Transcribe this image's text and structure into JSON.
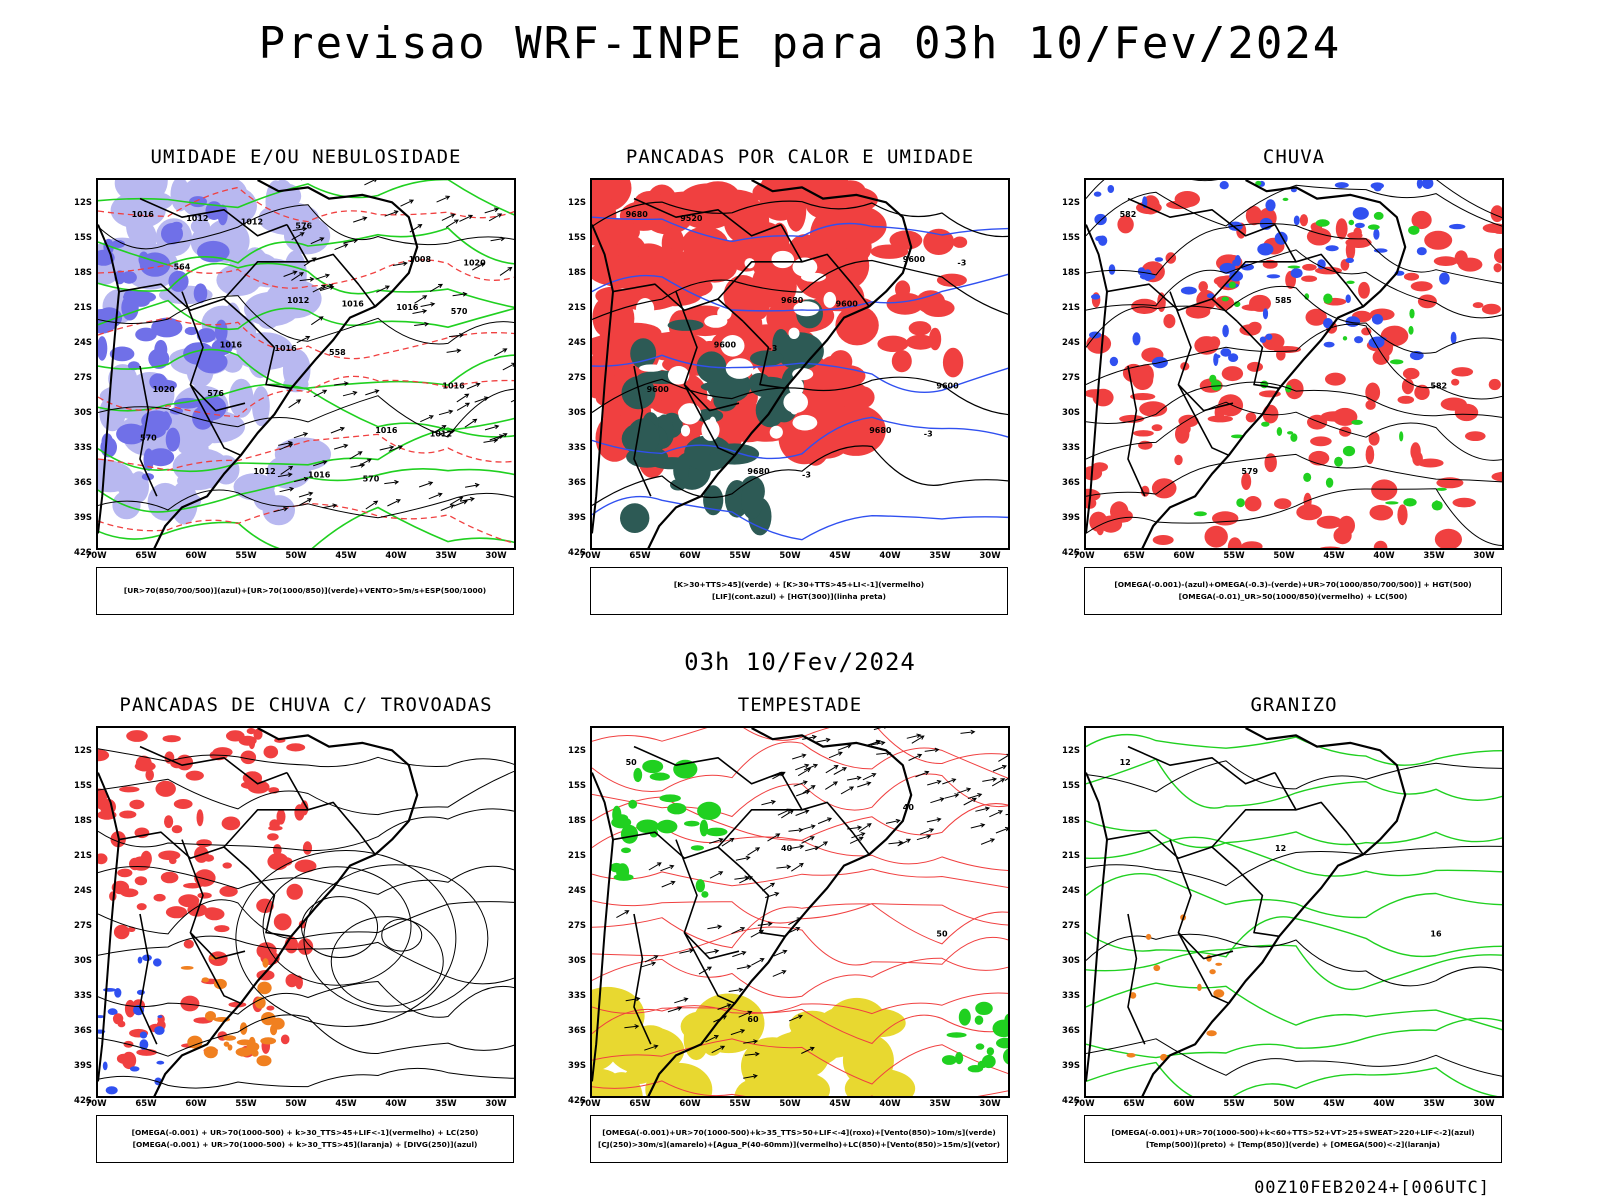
{
  "title": "Previsao WRF-INPE  para 03h 10/Fev/2024",
  "mid_title": "03h 10/Fev/2024",
  "footer": "00Z10FEB2024+[006UTC]",
  "lat_ticks": [
    "12S",
    "15S",
    "18S",
    "21S",
    "24S",
    "27S",
    "30S",
    "33S",
    "36S",
    "39S",
    "42S"
  ],
  "lon_ticks": [
    "70W",
    "65W",
    "60W",
    "55W",
    "50W",
    "45W",
    "40W",
    "35W",
    "30W"
  ],
  "colors": {
    "red": "#f04040",
    "green": "#20d020",
    "blue": "#3050f0",
    "lavender": "#b8b8f0",
    "orange": "#f08020",
    "yellow": "#e8d830",
    "darkteal": "#2d5a55"
  },
  "panels": [
    {
      "id": "umidade",
      "title": "UMIDADE E/OU NEBULOSIDADE",
      "legend": [
        "[UR>70(850/700/500)](azul)+[UR>70(1000/850)](verde)+VENTO>5m/s+ESP(500/1000)"
      ],
      "contour_labels": [
        "1016",
        "1012",
        "1016",
        "1012",
        "1008",
        "1016",
        "1016",
        "1012",
        "1016",
        "1020",
        "1016",
        "1020",
        "1016",
        "1012",
        "1012",
        "1016",
        "576",
        "570",
        "564",
        "558",
        "570",
        "576",
        "570"
      ]
    },
    {
      "id": "pancadas-calor",
      "title": "PANCADAS POR CALOR E UMIDADE",
      "legend": [
        "[K>30+TTS>45](verde) + [K>30+TTS>45+LI<-1](vermelho)",
        "[LIF](cont.azul) + [HGT(300)](linha preta)"
      ],
      "contour_labels": [
        "9680",
        "9680",
        "9600",
        "9680",
        "9600",
        "9600",
        "9680",
        "9520",
        "9600",
        "9600",
        "-3",
        "-3",
        "-3",
        "-3"
      ]
    },
    {
      "id": "chuva",
      "title": "CHUVA",
      "legend": [
        "[OMEGA(-0.001)-(azul)+OMEGA(-0.3)-(verde)+UR>70(1000/850/700/500)] + HGT(500)",
        "[OMEGA(-0.01)_UR>50(1000/850)(vermelho) + LC(500)"
      ],
      "contour_labels": [
        "582",
        "585",
        "582",
        "579"
      ]
    },
    {
      "id": "pancadas-trovoadas",
      "title": "PANCADAS DE CHUVA C/ TROVOADAS",
      "legend": [
        "[OMEGA(-0.001) + UR>70(1000-500) + k>30_TTS>45+LIF<-1](vermelho) + LC(250)",
        "[OMEGA(-0.001) + UR>70(1000-500) + k>30_TTS>45](laranja) + [DIVG(250)](azul)"
      ],
      "contour_labels": []
    },
    {
      "id": "tempestade",
      "title": "TEMPESTADE",
      "legend": [
        "[OMEGA(-0.001)+UR>70(1000-500)+k>35_TTS>50+LIF<-4](roxo)+[Vento(850)>10m/s](verde)",
        "[CJ(250)>30m/s](amarelo)+[Agua_P(40-60mm)](vermelho)+LC(850)+[Vento(850)>15m/s](vetor)"
      ],
      "contour_labels": [
        "50",
        "40",
        "50",
        "60",
        "40"
      ]
    },
    {
      "id": "granizo",
      "title": "GRANIZO",
      "legend": [
        "[OMEGA(-0.001)+UR>70(1000-500)+k<60+TTS>52+VT>25+SWEAT>220+LIF<-2](azul)",
        "[Temp(500)](preto) + [Temp(850)](verde) + [OMEGA(500)<-2](laranja)"
      ],
      "contour_labels": [
        "12",
        "12",
        "16"
      ]
    }
  ]
}
